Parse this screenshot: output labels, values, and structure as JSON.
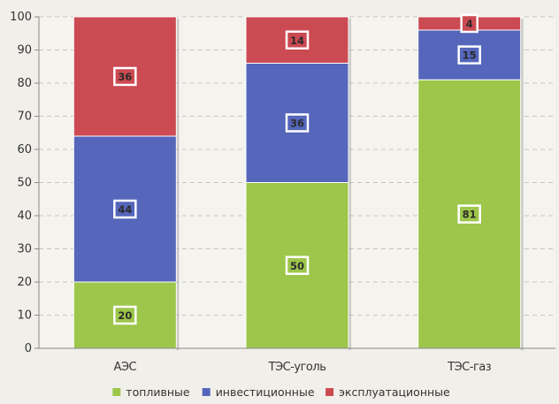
{
  "chart_data": {
    "type": "bar",
    "stacked": true,
    "categories": [
      "АЭС",
      "ТЭС-уголь",
      "ТЭС-газ"
    ],
    "series": [
      {
        "name": "топливные",
        "values": [
          20,
          50,
          81
        ],
        "color": "#9dc64b"
      },
      {
        "name": "инвестиционные",
        "values": [
          44,
          36,
          15
        ],
        "color": "#5566bb"
      },
      {
        "name": "эксплуатационные",
        "values": [
          36,
          14,
          4
        ],
        "color": "#cc4a52"
      }
    ],
    "y_ticks": [
      0,
      10,
      20,
      30,
      40,
      50,
      60,
      70,
      80,
      90,
      100
    ],
    "ylim": [
      0,
      100
    ],
    "grid": true,
    "legend_position": "bottom"
  }
}
